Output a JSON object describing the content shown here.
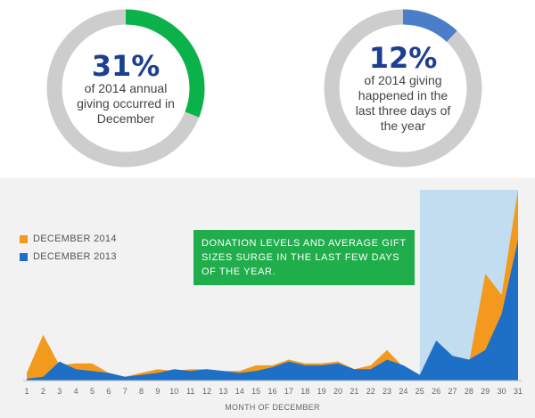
{
  "stats": [
    {
      "percent": "31%",
      "caption": "of 2014 annual giving occurred in December",
      "fraction": 0.31,
      "color": "#0bb24a"
    },
    {
      "percent": "12%",
      "caption": "of 2014 giving happened in the last three days of the year",
      "fraction": 0.12,
      "color": "#4a7ec8"
    }
  ],
  "legend": [
    {
      "label": "DECEMBER 2014",
      "color": "#f39a1e"
    },
    {
      "label": "DECEMBER 2013",
      "color": "#1e6fc6"
    }
  ],
  "callout": "DONATION LEVELS AND AVERAGE GIFT SIZES SURGE IN THE LAST FEW DAYS OF THE YEAR.",
  "chart_data": {
    "type": "area",
    "xlabel": "MONTH OF DECEMBER",
    "ylabel": "",
    "x": [
      1,
      2,
      3,
      4,
      5,
      6,
      7,
      8,
      9,
      10,
      11,
      12,
      13,
      14,
      15,
      16,
      17,
      18,
      19,
      20,
      21,
      22,
      23,
      24,
      25,
      26,
      27,
      28,
      29,
      30,
      31
    ],
    "highlight_range": [
      25,
      31
    ],
    "highlight_color": "#c3ddf0",
    "series": [
      {
        "name": "DECEMBER 2014",
        "color": "#f39a1e",
        "values": [
          4,
          24,
          8,
          9,
          9,
          4,
          2,
          4,
          6,
          5,
          6,
          6,
          5,
          5,
          8,
          8,
          11,
          9,
          9,
          10,
          6,
          8,
          16,
          7,
          3,
          12,
          9,
          9,
          56,
          45,
          100
        ]
      },
      {
        "name": "DECEMBER 2013",
        "color": "#1e6fc6",
        "values": [
          1,
          2,
          10,
          6,
          5,
          4,
          2,
          3,
          4,
          6,
          5,
          6,
          5,
          4,
          5,
          7,
          10,
          8,
          8,
          9,
          6,
          6,
          11,
          8,
          3,
          21,
          13,
          11,
          16,
          35,
          74
        ]
      }
    ]
  }
}
